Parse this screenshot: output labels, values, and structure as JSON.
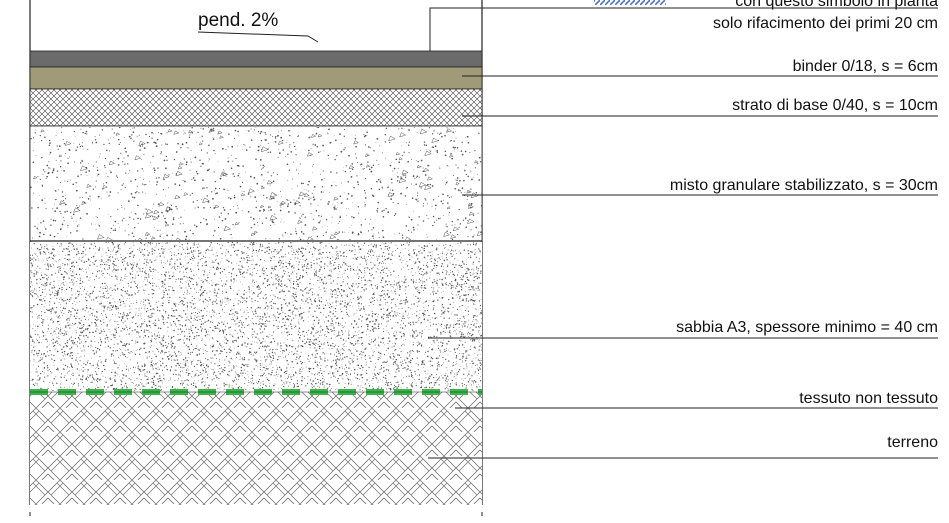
{
  "slope_label": "pend. 2%",
  "legend": {
    "symbol_caption": "con questo simbolo in pianta",
    "note": "solo rifacimento dei primi 20 cm",
    "symbol_color": "#4a6fd4"
  },
  "layers": [
    {
      "id": "usura",
      "label": "",
      "fill": "#6b6b6b"
    },
    {
      "id": "binder",
      "label": "binder 0/18, s = 6cm",
      "fill": "#a09a78"
    },
    {
      "id": "base",
      "label": "strato di base 0/40, s = 10cm",
      "fill": "crosshatch"
    },
    {
      "id": "misto",
      "label": "misto granulare stabilizzato, s = 30cm",
      "fill": "sparse-dots"
    },
    {
      "id": "sabbia",
      "label": "sabbia A3, spessore minimo = 40 cm",
      "fill": "dense-dots"
    },
    {
      "id": "tnt",
      "label": "tessuto non tessuto",
      "fill": "#3bb54a"
    },
    {
      "id": "terreno",
      "label": "terreno",
      "fill": "herringbone"
    }
  ]
}
